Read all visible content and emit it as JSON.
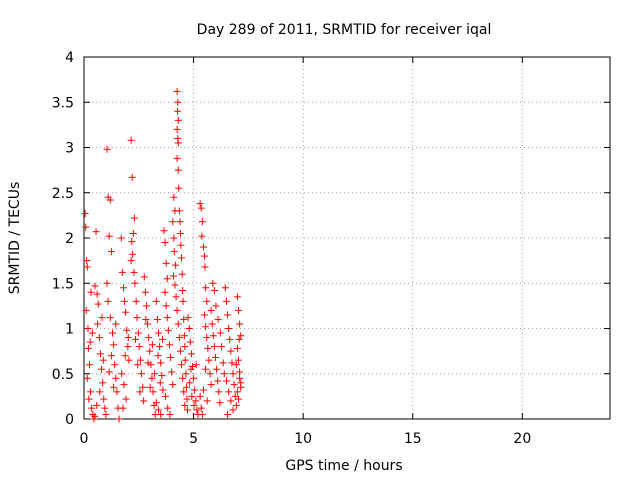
{
  "chart_data": {
    "type": "scatter",
    "title": "Day 289 of 2011, SRMTID for receiver iqal",
    "xlabel": "GPS time / hours",
    "ylabel": "SRMTID / TECUs",
    "xlim": [
      0,
      24
    ],
    "ylim": [
      0,
      4
    ],
    "xticks": [
      0,
      5,
      10,
      15,
      20
    ],
    "xtick_labels": [
      "0",
      "5",
      "10",
      "15",
      "20"
    ],
    "yticks": [
      0,
      0.5,
      1,
      1.5,
      2,
      2.5,
      3,
      3.5,
      4
    ],
    "ytick_labels": [
      "0",
      "0.5",
      "1",
      "1.5",
      "2",
      "2.5",
      "3",
      "3.5",
      "4"
    ],
    "grid": true,
    "marker": "+",
    "color": "#ff0000",
    "series": [
      {
        "name": "SRMTID",
        "points": [
          [
            0.05,
            2.27
          ],
          [
            0.08,
            2.12
          ],
          [
            0.12,
            1.75
          ],
          [
            0.15,
            1.68
          ],
          [
            0.1,
            1.2
          ],
          [
            0.18,
            1.0
          ],
          [
            0.2,
            0.78
          ],
          [
            0.25,
            0.6
          ],
          [
            0.3,
            0.3
          ],
          [
            0.35,
            0.12
          ],
          [
            0.4,
            0.05
          ],
          [
            0.45,
            0.0
          ],
          [
            0.5,
            0.03
          ],
          [
            0.15,
            0.45
          ],
          [
            0.22,
            0.22
          ],
          [
            0.28,
            0.85
          ],
          [
            0.32,
            1.4
          ],
          [
            0.38,
            0.95
          ],
          [
            0.55,
            2.07
          ],
          [
            0.5,
            1.47
          ],
          [
            0.6,
            1.38
          ],
          [
            0.65,
            1.27
          ],
          [
            0.7,
            0.9
          ],
          [
            0.75,
            0.72
          ],
          [
            0.8,
            0.55
          ],
          [
            0.85,
            0.4
          ],
          [
            0.9,
            0.22
          ],
          [
            0.95,
            0.12
          ],
          [
            1.0,
            0.05
          ],
          [
            0.62,
            1.05
          ],
          [
            0.72,
            0.3
          ],
          [
            0.82,
            1.12
          ],
          [
            0.88,
            0.65
          ],
          [
            0.58,
            0.15
          ],
          [
            1.05,
            2.98
          ],
          [
            1.1,
            2.45
          ],
          [
            1.2,
            2.42
          ],
          [
            1.15,
            2.02
          ],
          [
            1.25,
            1.85
          ],
          [
            1.05,
            1.5
          ],
          [
            1.1,
            1.3
          ],
          [
            1.2,
            1.12
          ],
          [
            1.3,
            0.95
          ],
          [
            1.35,
            0.82
          ],
          [
            1.4,
            0.6
          ],
          [
            1.45,
            0.45
          ],
          [
            1.5,
            0.3
          ],
          [
            1.55,
            0.12
          ],
          [
            1.6,
            0.0
          ],
          [
            1.25,
            0.7
          ],
          [
            1.35,
            0.35
          ],
          [
            1.15,
            0.52
          ],
          [
            1.45,
            1.05
          ],
          [
            1.7,
            2.0
          ],
          [
            1.75,
            1.62
          ],
          [
            1.8,
            1.45
          ],
          [
            1.85,
            1.3
          ],
          [
            1.9,
            1.18
          ],
          [
            1.95,
            0.98
          ],
          [
            2.0,
            0.8
          ],
          [
            2.05,
            0.65
          ],
          [
            1.72,
            0.5
          ],
          [
            1.82,
            0.38
          ],
          [
            1.92,
            0.22
          ],
          [
            1.78,
            0.12
          ],
          [
            2.02,
            0.9
          ],
          [
            1.88,
            0.7
          ],
          [
            2.15,
            3.08
          ],
          [
            2.2,
            2.67
          ],
          [
            2.3,
            2.22
          ],
          [
            2.25,
            2.05
          ],
          [
            2.18,
            1.96
          ],
          [
            2.22,
            1.82
          ],
          [
            2.28,
            1.62
          ],
          [
            2.32,
            1.5
          ],
          [
            2.38,
            1.3
          ],
          [
            2.42,
            1.12
          ],
          [
            2.48,
            0.95
          ],
          [
            2.52,
            0.8
          ],
          [
            2.58,
            0.65
          ],
          [
            2.62,
            0.5
          ],
          [
            2.68,
            0.35
          ],
          [
            2.72,
            0.2
          ],
          [
            2.15,
            1.75
          ],
          [
            2.35,
            0.88
          ],
          [
            2.45,
            0.6
          ],
          [
            2.55,
            0.3
          ],
          [
            2.75,
            1.57
          ],
          [
            2.8,
            1.4
          ],
          [
            2.85,
            1.25
          ],
          [
            2.9,
            1.05
          ],
          [
            2.95,
            0.9
          ],
          [
            3.0,
            0.75
          ],
          [
            3.05,
            0.6
          ],
          [
            3.1,
            0.45
          ],
          [
            3.15,
            0.3
          ],
          [
            3.2,
            0.15
          ],
          [
            3.25,
            0.05
          ],
          [
            2.82,
            1.1
          ],
          [
            2.92,
            0.62
          ],
          [
            3.02,
            0.35
          ],
          [
            3.12,
            0.82
          ],
          [
            3.22,
            0.5
          ],
          [
            3.3,
            1.3
          ],
          [
            3.35,
            1.1
          ],
          [
            3.4,
            0.95
          ],
          [
            3.45,
            0.8
          ],
          [
            3.5,
            0.62
          ],
          [
            3.55,
            0.48
          ],
          [
            3.6,
            0.32
          ],
          [
            3.3,
            0.18
          ],
          [
            3.4,
            0.1
          ],
          [
            3.5,
            0.05
          ],
          [
            3.38,
            0.7
          ],
          [
            3.48,
            0.4
          ],
          [
            3.58,
            0.88
          ],
          [
            3.65,
            2.08
          ],
          [
            3.7,
            1.95
          ],
          [
            3.75,
            1.72
          ],
          [
            3.8,
            1.55
          ],
          [
            3.7,
            1.4
          ],
          [
            3.75,
            1.25
          ],
          [
            3.8,
            1.12
          ],
          [
            3.85,
            0.98
          ],
          [
            3.9,
            0.82
          ],
          [
            3.95,
            0.68
          ],
          [
            4.0,
            0.52
          ],
          [
            4.05,
            0.38
          ],
          [
            3.72,
            0.25
          ],
          [
            3.82,
            0.12
          ],
          [
            3.92,
            0.05
          ],
          [
            4.1,
            2.45
          ],
          [
            4.15,
            2.3
          ],
          [
            4.05,
            2.18
          ],
          [
            4.1,
            2.0
          ],
          [
            4.12,
            1.85
          ],
          [
            4.18,
            1.7
          ],
          [
            4.08,
            1.58
          ],
          [
            4.15,
            1.48
          ],
          [
            4.2,
            1.35
          ],
          [
            4.25,
            1.2
          ],
          [
            4.3,
            1.05
          ],
          [
            4.35,
            0.9
          ],
          [
            4.4,
            0.75
          ],
          [
            4.45,
            0.6
          ],
          [
            4.5,
            0.45
          ],
          [
            4.55,
            0.3
          ],
          [
            4.6,
            0.15
          ],
          [
            4.25,
            3.62
          ],
          [
            4.28,
            3.5
          ],
          [
            4.27,
            3.4
          ],
          [
            4.3,
            3.3
          ],
          [
            4.25,
            3.2
          ],
          [
            4.28,
            3.1
          ],
          [
            4.3,
            3.05
          ],
          [
            4.25,
            2.88
          ],
          [
            4.3,
            2.75
          ],
          [
            4.32,
            2.55
          ],
          [
            4.35,
            2.3
          ],
          [
            4.38,
            2.18
          ],
          [
            4.4,
            2.05
          ],
          [
            4.42,
            1.92
          ],
          [
            4.45,
            1.78
          ],
          [
            4.48,
            1.6
          ],
          [
            4.5,
            1.42
          ],
          [
            4.52,
            1.3
          ],
          [
            4.55,
            1.1
          ],
          [
            4.58,
            0.92
          ],
          [
            4.6,
            0.8
          ],
          [
            4.62,
            0.65
          ],
          [
            4.65,
            0.5
          ],
          [
            4.68,
            0.35
          ],
          [
            4.7,
            0.22
          ],
          [
            4.72,
            0.1
          ],
          [
            4.75,
            1.12
          ],
          [
            4.8,
            1.0
          ],
          [
            4.85,
            0.85
          ],
          [
            4.9,
            0.72
          ],
          [
            4.95,
            0.58
          ],
          [
            5.0,
            0.45
          ],
          [
            5.05,
            0.32
          ],
          [
            5.1,
            0.2
          ],
          [
            5.15,
            0.1
          ],
          [
            5.2,
            0.05
          ],
          [
            4.82,
            0.4
          ],
          [
            4.92,
            0.25
          ],
          [
            5.02,
            0.15
          ],
          [
            5.12,
            0.6
          ],
          [
            4.88,
            0.55
          ],
          [
            5.3,
            2.38
          ],
          [
            5.35,
            2.33
          ],
          [
            5.4,
            2.18
          ],
          [
            5.38,
            2.02
          ],
          [
            5.45,
            1.9
          ],
          [
            5.5,
            1.8
          ],
          [
            5.52,
            1.68
          ],
          [
            5.55,
            1.45
          ],
          [
            5.6,
            1.3
          ],
          [
            5.5,
            1.15
          ],
          [
            5.55,
            1.02
          ],
          [
            5.6,
            0.9
          ],
          [
            5.65,
            0.78
          ],
          [
            5.7,
            0.65
          ],
          [
            5.75,
            0.5
          ],
          [
            5.8,
            0.38
          ],
          [
            5.3,
            0.25
          ],
          [
            5.35,
            0.12
          ],
          [
            5.4,
            0.05
          ],
          [
            5.45,
            0.32
          ],
          [
            5.55,
            0.55
          ],
          [
            5.62,
            0.2
          ],
          [
            5.8,
            1.2
          ],
          [
            5.85,
            1.05
          ],
          [
            5.9,
            0.92
          ],
          [
            5.95,
            0.8
          ],
          [
            6.0,
            0.68
          ],
          [
            6.05,
            0.55
          ],
          [
            6.1,
            0.42
          ],
          [
            6.15,
            0.3
          ],
          [
            6.2,
            0.18
          ],
          [
            5.88,
            1.5
          ],
          [
            5.95,
            1.42
          ],
          [
            6.02,
            1.25
          ],
          [
            6.12,
            1.1
          ],
          [
            6.22,
            0.95
          ],
          [
            6.28,
            0.8
          ],
          [
            6.35,
            0.62
          ],
          [
            6.4,
            0.5
          ],
          [
            6.45,
            1.45
          ],
          [
            6.5,
            1.3
          ],
          [
            6.55,
            1.15
          ],
          [
            6.6,
            1.0
          ],
          [
            6.65,
            0.88
          ],
          [
            6.7,
            0.75
          ],
          [
            6.75,
            0.62
          ],
          [
            6.8,
            0.5
          ],
          [
            6.85,
            0.38
          ],
          [
            6.9,
            0.25
          ],
          [
            6.95,
            0.15
          ],
          [
            6.5,
            0.42
          ],
          [
            6.6,
            0.3
          ],
          [
            6.7,
            0.2
          ],
          [
            6.8,
            0.1
          ],
          [
            6.55,
            0.05
          ],
          [
            7.0,
            1.35
          ],
          [
            7.05,
            1.2
          ],
          [
            7.1,
            1.05
          ],
          [
            7.15,
            0.92
          ],
          [
            7.0,
            0.78
          ],
          [
            7.05,
            0.65
          ],
          [
            7.1,
            0.52
          ],
          [
            7.15,
            0.4
          ],
          [
            7.0,
            0.3
          ],
          [
            7.05,
            0.22
          ],
          [
            7.1,
            0.45
          ],
          [
            7.15,
            0.35
          ],
          [
            6.95,
            0.6
          ],
          [
            7.08,
            0.88
          ]
        ]
      }
    ]
  }
}
